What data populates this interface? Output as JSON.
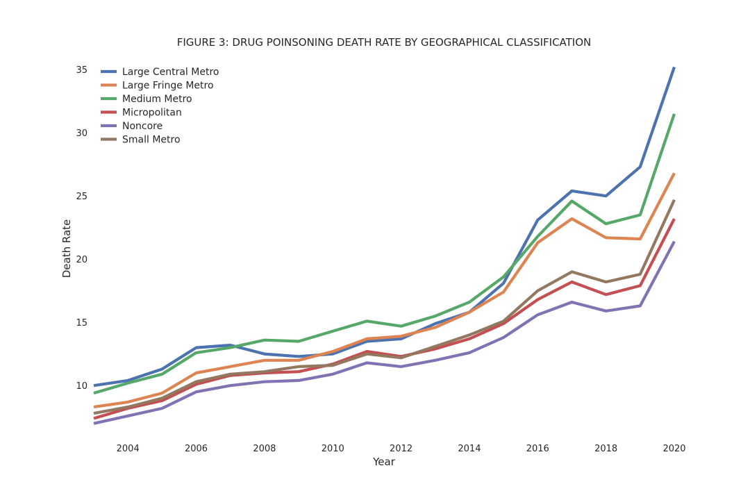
{
  "chart_data": {
    "type": "line",
    "title": "FIGURE 3: DRUG POINSONING DEATH RATE BY GEOGRAPHICAL CLASSIFICATION",
    "xlabel": "Year",
    "ylabel": "Death Rate",
    "xlim": [
      2003,
      2020
    ],
    "ylim": [
      6,
      36
    ],
    "x_ticks": [
      2004,
      2006,
      2008,
      2010,
      2012,
      2014,
      2016,
      2018,
      2020
    ],
    "y_ticks": [
      10,
      15,
      20,
      25,
      30,
      35
    ],
    "grid": false,
    "legend": "top-left",
    "x": [
      2003,
      2004,
      2005,
      2006,
      2007,
      2008,
      2009,
      2010,
      2011,
      2012,
      2013,
      2014,
      2015,
      2016,
      2017,
      2018,
      2019,
      2020
    ],
    "series": [
      {
        "name": "Large Central Metro",
        "color": "#4c72b0",
        "values": [
          10.0,
          10.4,
          11.3,
          13.0,
          13.2,
          12.5,
          12.3,
          12.5,
          13.5,
          13.7,
          14.9,
          15.8,
          18.1,
          23.1,
          25.4,
          25.0,
          27.3,
          35.2
        ]
      },
      {
        "name": "Large Fringe Metro",
        "color": "#dd8452",
        "values": [
          8.3,
          8.7,
          9.4,
          11.0,
          11.5,
          12.0,
          12.0,
          12.7,
          13.7,
          13.9,
          14.6,
          15.8,
          17.4,
          21.3,
          23.2,
          21.7,
          21.6,
          26.8
        ]
      },
      {
        "name": "Medium Metro",
        "color": "#55a868",
        "values": [
          9.4,
          10.2,
          10.9,
          12.6,
          13.0,
          13.6,
          13.5,
          14.3,
          15.1,
          14.7,
          15.5,
          16.6,
          18.6,
          21.8,
          24.6,
          22.8,
          23.5,
          31.5
        ]
      },
      {
        "name": "Micropolitan",
        "color": "#c44e52",
        "values": [
          7.4,
          8.2,
          8.8,
          10.1,
          10.8,
          11.0,
          11.1,
          11.7,
          12.7,
          12.3,
          12.9,
          13.7,
          14.9,
          16.8,
          18.2,
          17.2,
          17.9,
          23.2
        ]
      },
      {
        "name": "Noncore",
        "color": "#8172b3",
        "values": [
          7.0,
          7.6,
          8.2,
          9.5,
          10.0,
          10.3,
          10.4,
          10.9,
          11.8,
          11.5,
          12.0,
          12.6,
          13.8,
          15.6,
          16.6,
          15.9,
          16.3,
          21.4
        ]
      },
      {
        "name": "Small Metro",
        "color": "#937860",
        "values": [
          7.8,
          8.3,
          9.0,
          10.3,
          10.9,
          11.1,
          11.5,
          11.6,
          12.5,
          12.2,
          13.1,
          14.0,
          15.1,
          17.5,
          19.0,
          18.2,
          18.8,
          24.7
        ]
      }
    ]
  }
}
